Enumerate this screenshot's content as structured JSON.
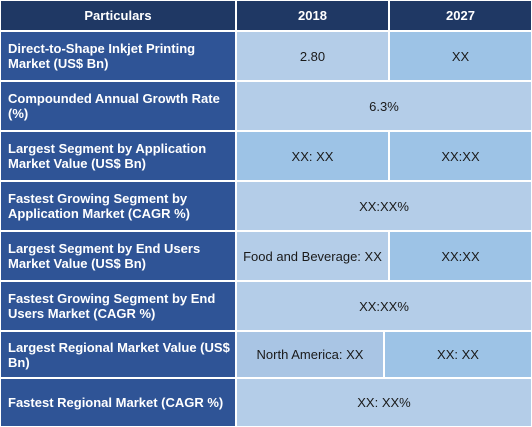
{
  "header": {
    "col1": "Particulars",
    "col2": "2018",
    "col3": "2027"
  },
  "rows": [
    {
      "label": "Direct-to-Shape Inkjet Printing Market (US$ Bn)",
      "v2018": "2.80",
      "v2027": "XX"
    },
    {
      "label": "Compounded Annual Growth Rate (%)",
      "merged": "6.3%"
    },
    {
      "label": "Largest Segment by Application Market Value (US$ Bn)",
      "v2018": "XX: XX",
      "v2027": "XX:XX"
    },
    {
      "label": "Fastest Growing Segment by Application Market (CAGR %)",
      "merged": "XX:XX%"
    },
    {
      "label": "Largest Segment by End Users Market Value (US$ Bn)",
      "v2018": "Food and Beverage: XX",
      "v2027": "XX:XX"
    },
    {
      "label": "Fastest Growing Segment by End Users Market (CAGR %)",
      "merged": "XX:XX%"
    },
    {
      "label": "Largest Regional Market Value (US$ Bn)",
      "v2018": "North America: XX",
      "v2027": "XX: XX"
    },
    {
      "label": "Fastest Regional Market (CAGR %)",
      "merged": "XX: XX%"
    }
  ]
}
